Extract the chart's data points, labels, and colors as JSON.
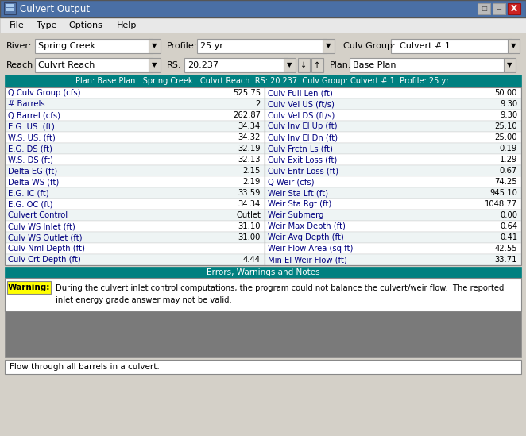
{
  "title": "Culvert Output",
  "menu_items": [
    "File",
    "Type",
    "Options",
    "Help"
  ],
  "river": "Spring Creek",
  "profile": "25 yr",
  "culv_group": "Culvert # 1",
  "reach": "Culvrt Reach",
  "rs": "20.237",
  "plan": "Base Plan",
  "header_text": "Plan: Base Plan   Spring Creek   Culvrt Reach  RS: 20.237  Culv Group: Culvert # 1  Profile: 25 yr",
  "left_data": [
    [
      "Q Culv Group (cfs)",
      "525.75"
    ],
    [
      "# Barrels",
      "2"
    ],
    [
      "Q Barrel (cfs)",
      "262.87"
    ],
    [
      "E.G. US. (ft)",
      "34.34"
    ],
    [
      "W.S. US. (ft)",
      "34.32"
    ],
    [
      "E.G. DS (ft)",
      "32.19"
    ],
    [
      "W.S. DS (ft)",
      "32.13"
    ],
    [
      "Delta EG (ft)",
      "2.15"
    ],
    [
      "Delta WS (ft)",
      "2.19"
    ],
    [
      "E.G. IC (ft)",
      "33.59"
    ],
    [
      "E.G. OC (ft)",
      "34.34"
    ],
    [
      "Culvert Control",
      "Outlet"
    ],
    [
      "Culv WS Inlet (ft)",
      "31.10"
    ],
    [
      "Culv WS Outlet (ft)",
      "31.00"
    ],
    [
      "Culv Nml Depth (ft)",
      ""
    ],
    [
      "Culv Crt Depth (ft)",
      "4.44"
    ]
  ],
  "right_data": [
    [
      "Culv Full Len (ft)",
      "50.00"
    ],
    [
      "Culv Vel US (ft/s)",
      "9.30"
    ],
    [
      "Culv Vel DS (ft/s)",
      "9.30"
    ],
    [
      "Culv Inv El Up (ft)",
      "25.10"
    ],
    [
      "Culv Inv El Dn (ft)",
      "25.00"
    ],
    [
      "Culv Frctn Ls (ft)",
      "0.19"
    ],
    [
      "Culv Exit Loss (ft)",
      "1.29"
    ],
    [
      "Culv Entr Loss (ft)",
      "0.67"
    ],
    [
      "Q Weir (cfs)",
      "74.25"
    ],
    [
      "Weir Sta Lft (ft)",
      "945.10"
    ],
    [
      "Weir Sta Rgt (ft)",
      "1048.77"
    ],
    [
      "Weir Submerg",
      "0.00"
    ],
    [
      "Weir Max Depth (ft)",
      "0.64"
    ],
    [
      "Weir Avg Depth (ft)",
      "0.41"
    ],
    [
      "Weir Flow Area (sq ft)",
      "42.55"
    ],
    [
      "Min El Weir Flow (ft)",
      "33.71"
    ]
  ],
  "errors_header": "Errors, Warnings and Notes",
  "warning_label": "Warning:",
  "warning_line1": "During the culvert inlet control computations, the program could not balance the culvert/weir flow.  The reported",
  "warning_line2": "inlet energy grade answer may not be valid.",
  "footer_text": "Flow through all barrels in a culvert.",
  "bg_color": "#d4d0c8",
  "teal_color": "#008080",
  "titlebar_color": "#4a6fa5",
  "label_color": "#000080",
  "warning_yellow": "#ffff00",
  "gray_area": "#7a7a7a",
  "white": "#ffffff",
  "row_alt1": "#ffffff",
  "row_alt2": "#eef4f4"
}
